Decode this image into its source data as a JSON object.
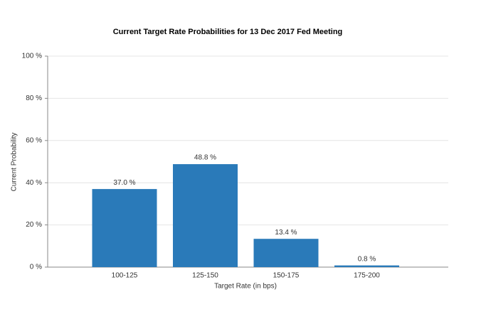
{
  "chart_data": {
    "type": "bar",
    "title": "Current Target Rate Probabilities for 13 Dec 2017 Fed Meeting",
    "x_label": "Target Rate (in bps)",
    "y_label": "Current Probability",
    "categories": [
      "100-125",
      "125-150",
      "150-175",
      "175-200"
    ],
    "values": [
      37.0,
      48.8,
      13.4,
      0.8
    ],
    "value_labels": [
      "37.0 %",
      "48.8 %",
      "13.4 %",
      "0.8 %"
    ],
    "color": "#2a7ab9",
    "ylim": [
      0,
      100
    ],
    "yticks": [
      {
        "value": 0,
        "label": "0 %"
      },
      {
        "value": 20,
        "label": "20 %"
      },
      {
        "value": 40,
        "label": "40 %"
      },
      {
        "value": 60,
        "label": "60 %"
      },
      {
        "value": 80,
        "label": "80 %"
      },
      {
        "value": 100,
        "label": "100 %"
      }
    ],
    "grid": true
  }
}
